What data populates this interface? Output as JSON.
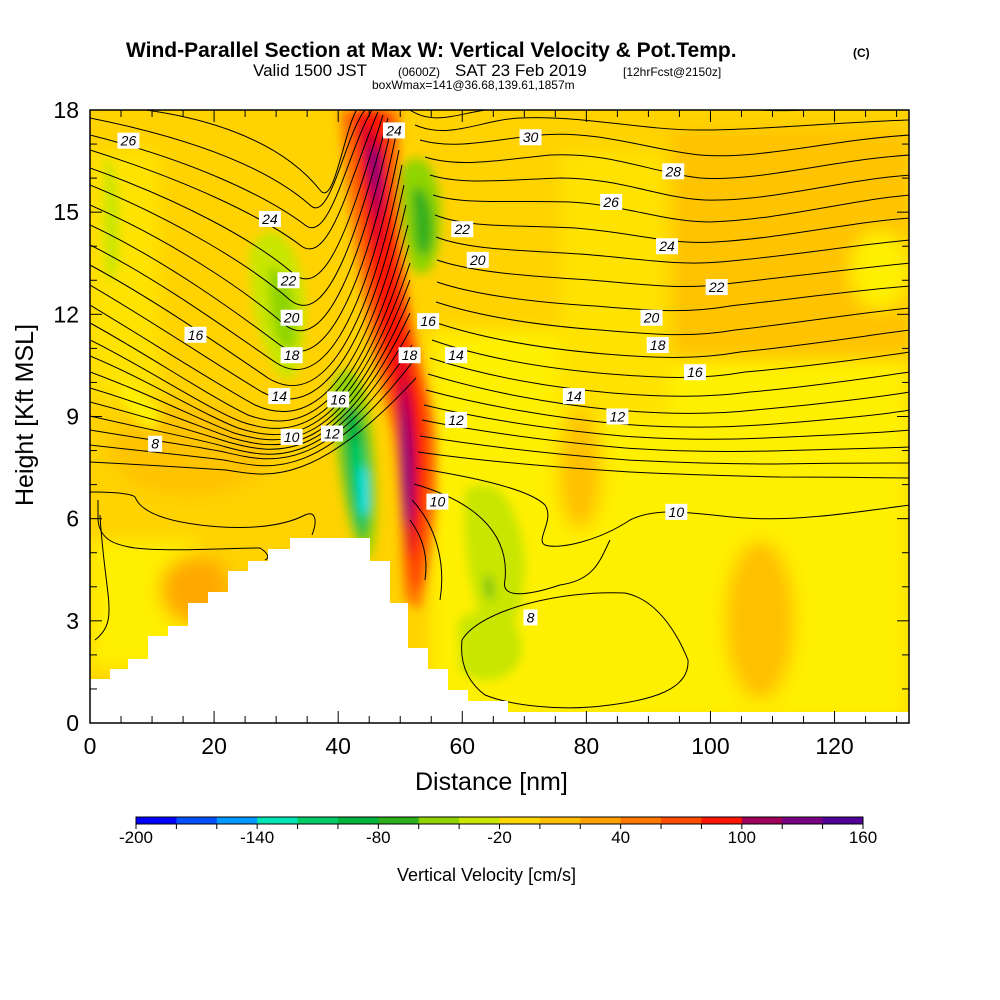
{
  "title": {
    "main": "Wind-Parallel Section at Max W: Vertical Velocity & Pot.Temp.",
    "mark": "(C)",
    "valid_a": "Valid 1500 JST",
    "valid_b": "(0600Z)",
    "valid_c": "SAT 23 Feb 2019",
    "valid_d": "[12hrFcst@2150z]",
    "box": "boxWmax=141@36.68,139.61,1857m"
  },
  "chart_data": {
    "type": "heatmap",
    "xlabel": "Distance [nm]",
    "ylabel": "Height [Kft MSL]",
    "xlim": [
      0,
      132
    ],
    "ylim": [
      0,
      18
    ],
    "xticks": [
      "0",
      "20",
      "40",
      "60",
      "80",
      "100",
      "120"
    ],
    "yticks": [
      "0",
      "3",
      "6",
      "9",
      "12",
      "15",
      "18"
    ],
    "colorbar": {
      "label": "Vertical Velocity [cm/s]",
      "min": -200,
      "max": 160,
      "step": 20,
      "ticks": [
        "-200",
        "-140",
        "-80",
        "-20",
        "40",
        "100",
        "160"
      ],
      "colors": [
        "#0000ff",
        "#0050ff",
        "#0099ff",
        "#00e5ff",
        "#00e5b4",
        "#00cc66",
        "#00b43c",
        "#2daf1e",
        "#8fd400",
        "#c8e600",
        "#fff000",
        "#ffd700",
        "#ffbe00",
        "#ffa000",
        "#ff7800",
        "#ff4b00",
        "#ff1400",
        "#d2002d",
        "#a0005a",
        "#780082",
        "#500096"
      ]
    },
    "contour_labels": [
      {
        "text": "26",
        "x": 6.2,
        "y": 17.1
      },
      {
        "text": "24",
        "x": 29,
        "y": 14.8
      },
      {
        "text": "22",
        "x": 32,
        "y": 13.0
      },
      {
        "text": "20",
        "x": 32.5,
        "y": 11.9
      },
      {
        "text": "18",
        "x": 32.5,
        "y": 10.8
      },
      {
        "text": "16",
        "x": 17,
        "y": 11.4
      },
      {
        "text": "14",
        "x": 30.5,
        "y": 9.6
      },
      {
        "text": "16",
        "x": 40,
        "y": 9.5
      },
      {
        "text": "10",
        "x": 32.5,
        "y": 8.4
      },
      {
        "text": "12",
        "x": 39,
        "y": 8.5
      },
      {
        "text": "8",
        "x": 10.5,
        "y": 8.2
      },
      {
        "text": "24",
        "x": 49,
        "y": 17.4
      },
      {
        "text": "22",
        "x": 60,
        "y": 14.5
      },
      {
        "text": "20",
        "x": 62.5,
        "y": 13.6
      },
      {
        "text": "16",
        "x": 54.5,
        "y": 11.8
      },
      {
        "text": "18",
        "x": 51.5,
        "y": 10.8
      },
      {
        "text": "14",
        "x": 59,
        "y": 10.8
      },
      {
        "text": "12",
        "x": 59,
        "y": 8.9
      },
      {
        "text": "10",
        "x": 56,
        "y": 6.5
      },
      {
        "text": "8",
        "x": 71,
        "y": 3.1
      },
      {
        "text": "30",
        "x": 71,
        "y": 17.2
      },
      {
        "text": "28",
        "x": 94,
        "y": 16.2
      },
      {
        "text": "26",
        "x": 84,
        "y": 15.3
      },
      {
        "text": "24",
        "x": 93,
        "y": 14.0
      },
      {
        "text": "22",
        "x": 101,
        "y": 12.8
      },
      {
        "text": "20",
        "x": 90.5,
        "y": 11.9
      },
      {
        "text": "18",
        "x": 91.5,
        "y": 11.1
      },
      {
        "text": "16",
        "x": 97.5,
        "y": 10.3
      },
      {
        "text": "14",
        "x": 78,
        "y": 9.6
      },
      {
        "text": "12",
        "x": 85,
        "y": 9.0
      },
      {
        "text": "10",
        "x": 94.5,
        "y": 6.2
      }
    ]
  }
}
